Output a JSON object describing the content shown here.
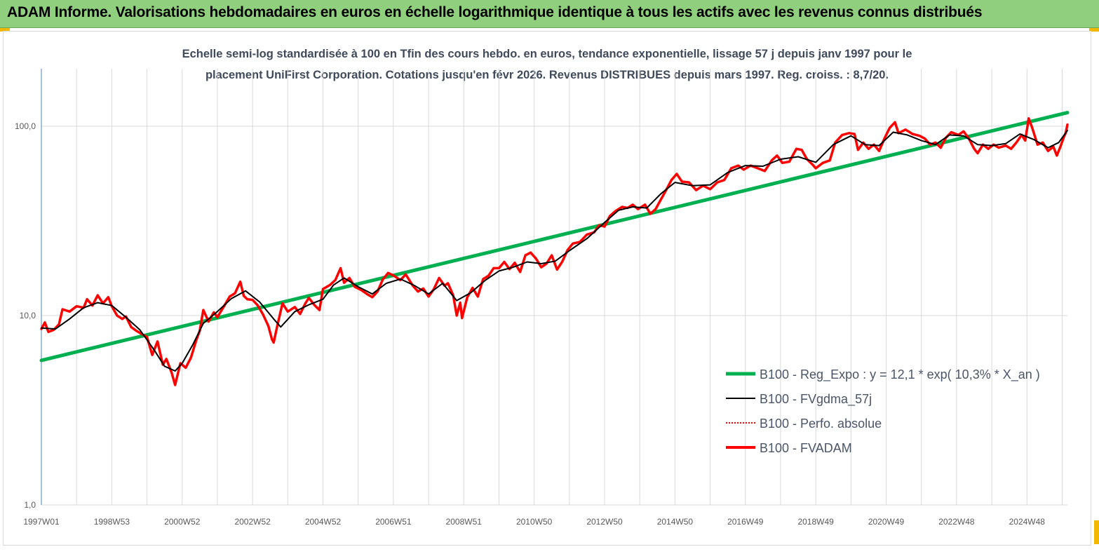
{
  "banner": {
    "title": "ADAM Informe. Valorisations hebdomadaires en euros en échelle logarithmique identique à tous les actifs avec les revenus connus distribués"
  },
  "chart_data": {
    "type": "line",
    "title_line1": "Echelle semi-log standardisée à 100 en Tfin des cours hebdo. en euros, tendance exponentielle, lissage 57 j depuis janv 1997 pour le",
    "title_line2": "placement UniFirst Corporation. Cotations jusqu'en févr 2026. Revenus DISTRIBUES depuis mars 1997. Reg.  croiss. : 8,7/20.",
    "y_scale": "log",
    "ylim": [
      1,
      200
    ],
    "y_ticks": [
      {
        "value": 1,
        "label": "1,0"
      },
      {
        "value": 10,
        "label": "10,0"
      },
      {
        "value": 100,
        "label": "100,0"
      }
    ],
    "x_range": [
      1997.0,
      2026.15
    ],
    "x_ticks": [
      {
        "x": 1997.0,
        "label": "1997W01"
      },
      {
        "x": 1999.0,
        "label": "1998W53"
      },
      {
        "x": 2001.0,
        "label": "2000W52"
      },
      {
        "x": 2003.0,
        "label": "2002W52"
      },
      {
        "x": 2005.0,
        "label": "2004W52"
      },
      {
        "x": 2007.0,
        "label": "2006W51"
      },
      {
        "x": 2009.0,
        "label": "2008W51"
      },
      {
        "x": 2011.0,
        "label": "2010W50"
      },
      {
        "x": 2013.0,
        "label": "2012W50"
      },
      {
        "x": 2015.0,
        "label": "2014W50"
      },
      {
        "x": 2017.0,
        "label": "2016W49"
      },
      {
        "x": 2019.0,
        "label": "2018W49"
      },
      {
        "x": 2021.0,
        "label": "2020W49"
      },
      {
        "x": 2023.0,
        "label": "2022W48"
      },
      {
        "x": 2025.0,
        "label": "2024W48"
      }
    ],
    "grid": "vertical",
    "legend_position": "bottom-right",
    "series": [
      {
        "name": "B100 - Reg_Expo : y = 12,1 * exp( 10,3% *  X_an )",
        "color": "#00b050",
        "style": "solid",
        "points": [
          [
            1997.0,
            5.8
          ],
          [
            2026.15,
            118
          ]
        ]
      },
      {
        "name": "B100 - FVgdma_57j",
        "color": "#000000",
        "style": "solid",
        "points": [
          [
            1997.0,
            8.6
          ],
          [
            1997.4,
            8.5
          ],
          [
            1997.8,
            9.6
          ],
          [
            1998.2,
            11.0
          ],
          [
            1998.6,
            11.7
          ],
          [
            1999.0,
            11.3
          ],
          [
            1999.4,
            9.8
          ],
          [
            1999.8,
            8.4
          ],
          [
            2000.2,
            6.6
          ],
          [
            2000.5,
            5.4
          ],
          [
            2000.8,
            5.1
          ],
          [
            2001.0,
            5.6
          ],
          [
            2001.3,
            7.0
          ],
          [
            2001.6,
            9.1
          ],
          [
            2002.0,
            10.5
          ],
          [
            2002.4,
            12.3
          ],
          [
            2002.8,
            13.5
          ],
          [
            2003.2,
            11.8
          ],
          [
            2003.6,
            9.6
          ],
          [
            2003.8,
            8.7
          ],
          [
            2004.2,
            10.5
          ],
          [
            2004.6,
            11.4
          ],
          [
            2005.0,
            12.2
          ],
          [
            2005.3,
            14.5
          ],
          [
            2005.6,
            15.8
          ],
          [
            2006.0,
            14.2
          ],
          [
            2006.4,
            13.0
          ],
          [
            2006.8,
            14.8
          ],
          [
            2007.2,
            15.6
          ],
          [
            2007.6,
            14.4
          ],
          [
            2008.0,
            13.0
          ],
          [
            2008.4,
            14.8
          ],
          [
            2008.8,
            12.0
          ],
          [
            2009.2,
            13.2
          ],
          [
            2009.6,
            15.3
          ],
          [
            2010.0,
            17.2
          ],
          [
            2010.4,
            18.0
          ],
          [
            2010.8,
            19.2
          ],
          [
            2011.2,
            18.8
          ],
          [
            2011.6,
            19.4
          ],
          [
            2012.0,
            22.0
          ],
          [
            2012.5,
            25.5
          ],
          [
            2013.0,
            31.0
          ],
          [
            2013.4,
            36.0
          ],
          [
            2013.8,
            37.5
          ],
          [
            2014.2,
            37.0
          ],
          [
            2014.6,
            44.0
          ],
          [
            2015.0,
            50.5
          ],
          [
            2015.5,
            48.5
          ],
          [
            2016.0,
            49.0
          ],
          [
            2016.5,
            57.0
          ],
          [
            2017.0,
            62.0
          ],
          [
            2017.5,
            61.5
          ],
          [
            2018.0,
            67.0
          ],
          [
            2018.5,
            69.0
          ],
          [
            2019.0,
            64.5
          ],
          [
            2019.5,
            80.0
          ],
          [
            2020.0,
            89.0
          ],
          [
            2020.4,
            80.0
          ],
          [
            2020.8,
            79.0
          ],
          [
            2021.2,
            93.0
          ],
          [
            2021.6,
            90.0
          ],
          [
            2022.0,
            84.0
          ],
          [
            2022.4,
            80.0
          ],
          [
            2022.8,
            90.0
          ],
          [
            2023.2,
            89.0
          ],
          [
            2023.6,
            80.0
          ],
          [
            2024.0,
            79.0
          ],
          [
            2024.4,
            81.0
          ],
          [
            2024.8,
            91.0
          ],
          [
            2025.2,
            85.0
          ],
          [
            2025.6,
            77.0
          ],
          [
            2025.9,
            82.0
          ],
          [
            2026.15,
            95.0
          ]
        ]
      },
      {
        "name": "B100 - Perfo. absolue",
        "color": "#ff0000",
        "style": "dotted",
        "points": []
      },
      {
        "name": "B100 - FVADAM",
        "color": "#ff0000",
        "style": "solid",
        "points": [
          [
            1997.0,
            8.5
          ],
          [
            1997.1,
            9.2
          ],
          [
            1997.2,
            8.2
          ],
          [
            1997.35,
            8.4
          ],
          [
            1997.5,
            9.0
          ],
          [
            1997.6,
            10.8
          ],
          [
            1997.8,
            10.5
          ],
          [
            1998.0,
            11.2
          ],
          [
            1998.2,
            11.0
          ],
          [
            1998.3,
            12.2
          ],
          [
            1998.45,
            11.3
          ],
          [
            1998.6,
            12.8
          ],
          [
            1998.75,
            11.6
          ],
          [
            1998.9,
            12.5
          ],
          [
            1999.0,
            11.2
          ],
          [
            1999.15,
            10.0
          ],
          [
            1999.3,
            9.6
          ],
          [
            1999.4,
            9.9
          ],
          [
            1999.55,
            8.7
          ],
          [
            1999.7,
            8.3
          ],
          [
            1999.85,
            8.0
          ],
          [
            2000.0,
            7.7
          ],
          [
            2000.15,
            6.2
          ],
          [
            2000.3,
            7.3
          ],
          [
            2000.45,
            5.5
          ],
          [
            2000.55,
            5.9
          ],
          [
            2000.7,
            5.0
          ],
          [
            2000.8,
            4.3
          ],
          [
            2000.95,
            5.6
          ],
          [
            2001.1,
            5.3
          ],
          [
            2001.25,
            6.0
          ],
          [
            2001.4,
            7.4
          ],
          [
            2001.5,
            8.3
          ],
          [
            2001.6,
            10.7
          ],
          [
            2001.75,
            9.3
          ],
          [
            2001.9,
            10.4
          ],
          [
            2002.0,
            9.8
          ],
          [
            2002.2,
            11.3
          ],
          [
            2002.35,
            12.6
          ],
          [
            2002.5,
            13.1
          ],
          [
            2002.65,
            15.1
          ],
          [
            2002.75,
            12.7
          ],
          [
            2002.85,
            12.2
          ],
          [
            2003.0,
            12.1
          ],
          [
            2003.15,
            11.3
          ],
          [
            2003.3,
            10.1
          ],
          [
            2003.45,
            8.8
          ],
          [
            2003.55,
            7.5
          ],
          [
            2003.6,
            7.2
          ],
          [
            2003.7,
            8.8
          ],
          [
            2003.85,
            11.6
          ],
          [
            2004.0,
            10.5
          ],
          [
            2004.2,
            11.1
          ],
          [
            2004.35,
            10.2
          ],
          [
            2004.5,
            11.6
          ],
          [
            2004.6,
            12.4
          ],
          [
            2004.75,
            11.4
          ],
          [
            2004.9,
            10.7
          ],
          [
            2005.0,
            13.8
          ],
          [
            2005.2,
            14.5
          ],
          [
            2005.35,
            15.4
          ],
          [
            2005.5,
            17.8
          ],
          [
            2005.6,
            14.9
          ],
          [
            2005.75,
            15.8
          ],
          [
            2005.9,
            14.2
          ],
          [
            2006.1,
            13.6
          ],
          [
            2006.25,
            13.0
          ],
          [
            2006.4,
            12.5
          ],
          [
            2006.55,
            13.4
          ],
          [
            2006.7,
            15.5
          ],
          [
            2006.85,
            16.8
          ],
          [
            2007.0,
            16.3
          ],
          [
            2007.2,
            15.4
          ],
          [
            2007.35,
            16.5
          ],
          [
            2007.55,
            14.4
          ],
          [
            2007.7,
            13.4
          ],
          [
            2007.85,
            13.9
          ],
          [
            2008.0,
            12.6
          ],
          [
            2008.15,
            13.8
          ],
          [
            2008.3,
            15.8
          ],
          [
            2008.45,
            14.4
          ],
          [
            2008.55,
            14.8
          ],
          [
            2008.7,
            12.8
          ],
          [
            2008.8,
            10.0
          ],
          [
            2008.9,
            11.7
          ],
          [
            2008.95,
            9.7
          ],
          [
            2009.1,
            12.5
          ],
          [
            2009.25,
            14.0
          ],
          [
            2009.4,
            12.6
          ],
          [
            2009.55,
            15.6
          ],
          [
            2009.7,
            16.2
          ],
          [
            2009.85,
            17.8
          ],
          [
            2010.0,
            17.8
          ],
          [
            2010.15,
            19.2
          ],
          [
            2010.3,
            17.6
          ],
          [
            2010.45,
            19.0
          ],
          [
            2010.6,
            17.0
          ],
          [
            2010.75,
            20.8
          ],
          [
            2010.9,
            21.5
          ],
          [
            2011.05,
            20.0
          ],
          [
            2011.2,
            18.0
          ],
          [
            2011.35,
            18.8
          ],
          [
            2011.5,
            20.8
          ],
          [
            2011.65,
            17.5
          ],
          [
            2011.8,
            19.3
          ],
          [
            2011.95,
            22.2
          ],
          [
            2012.1,
            24.0
          ],
          [
            2012.3,
            24.5
          ],
          [
            2012.5,
            26.8
          ],
          [
            2012.7,
            27.5
          ],
          [
            2012.85,
            30.0
          ],
          [
            2013.0,
            29.5
          ],
          [
            2013.15,
            33.5
          ],
          [
            2013.3,
            35.5
          ],
          [
            2013.5,
            37.5
          ],
          [
            2013.65,
            37.0
          ],
          [
            2013.8,
            38.5
          ],
          [
            2013.95,
            36.5
          ],
          [
            2014.15,
            38.5
          ],
          [
            2014.3,
            34.5
          ],
          [
            2014.45,
            36.5
          ],
          [
            2014.6,
            41.0
          ],
          [
            2014.75,
            46.0
          ],
          [
            2014.9,
            52.0
          ],
          [
            2015.05,
            56.0
          ],
          [
            2015.2,
            51.0
          ],
          [
            2015.4,
            50.5
          ],
          [
            2015.6,
            46.0
          ],
          [
            2015.8,
            48.5
          ],
          [
            2016.0,
            46.5
          ],
          [
            2016.2,
            50.5
          ],
          [
            2016.4,
            52.0
          ],
          [
            2016.6,
            60.0
          ],
          [
            2016.8,
            62.0
          ],
          [
            2016.95,
            59.0
          ],
          [
            2017.15,
            62.0
          ],
          [
            2017.35,
            60.0
          ],
          [
            2017.55,
            58.0
          ],
          [
            2017.75,
            66.0
          ],
          [
            2017.9,
            70.0
          ],
          [
            2018.05,
            64.0
          ],
          [
            2018.25,
            65.0
          ],
          [
            2018.45,
            76.0
          ],
          [
            2018.6,
            75.0
          ],
          [
            2018.75,
            67.0
          ],
          [
            2018.9,
            63.0
          ],
          [
            2019.0,
            60.0
          ],
          [
            2019.2,
            64.0
          ],
          [
            2019.4,
            66.0
          ],
          [
            2019.55,
            82.0
          ],
          [
            2019.75,
            90.0
          ],
          [
            2019.95,
            92.0
          ],
          [
            2020.1,
            91.0
          ],
          [
            2020.2,
            75.0
          ],
          [
            2020.35,
            82.0
          ],
          [
            2020.5,
            76.0
          ],
          [
            2020.65,
            80.0
          ],
          [
            2020.8,
            74.0
          ],
          [
            2020.95,
            86.0
          ],
          [
            2021.1,
            98.0
          ],
          [
            2021.25,
            105.0
          ],
          [
            2021.35,
            92.0
          ],
          [
            2021.55,
            96.0
          ],
          [
            2021.75,
            91.0
          ],
          [
            2021.95,
            89.0
          ],
          [
            2022.1,
            86.0
          ],
          [
            2022.25,
            80.0
          ],
          [
            2022.4,
            82.0
          ],
          [
            2022.55,
            77.0
          ],
          [
            2022.7,
            87.0
          ],
          [
            2022.85,
            93.0
          ],
          [
            2023.05,
            90.0
          ],
          [
            2023.2,
            94.0
          ],
          [
            2023.35,
            86.0
          ],
          [
            2023.5,
            76.0
          ],
          [
            2023.6,
            72.0
          ],
          [
            2023.75,
            80.0
          ],
          [
            2023.9,
            76.0
          ],
          [
            2024.05,
            80.0
          ],
          [
            2024.2,
            77.0
          ],
          [
            2024.4,
            79.0
          ],
          [
            2024.55,
            76.0
          ],
          [
            2024.7,
            82.0
          ],
          [
            2024.85,
            90.0
          ],
          [
            2024.95,
            84.0
          ],
          [
            2025.05,
            110.0
          ],
          [
            2025.15,
            98.0
          ],
          [
            2025.3,
            80.0
          ],
          [
            2025.45,
            82.0
          ],
          [
            2025.6,
            74.0
          ],
          [
            2025.75,
            78.0
          ],
          [
            2025.85,
            70.0
          ],
          [
            2025.95,
            78.0
          ],
          [
            2026.05,
            88.0
          ],
          [
            2026.1,
            92.0
          ],
          [
            2026.15,
            102.0
          ]
        ]
      }
    ]
  }
}
